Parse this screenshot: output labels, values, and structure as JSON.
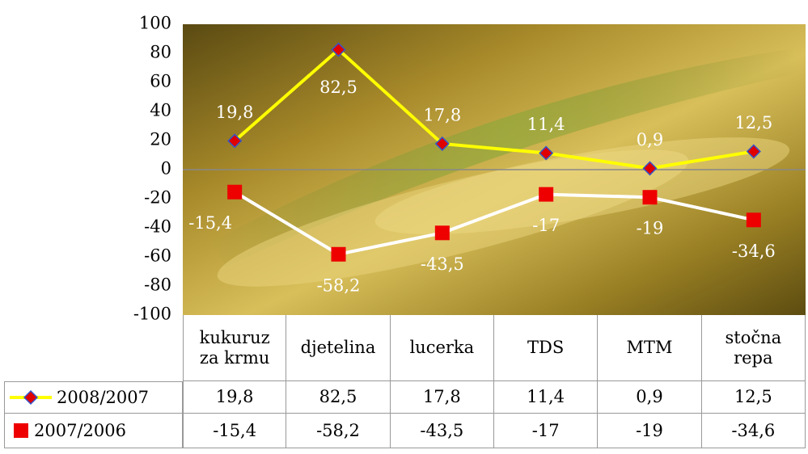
{
  "chart_data": {
    "type": "line",
    "categories": [
      "kukuruz za krmu",
      "djetelina",
      "lucerka",
      "TDS",
      "MTM",
      "stočna repa"
    ],
    "series": [
      {
        "name": "2008/2007",
        "color": "#ffff00",
        "values": [
          19.8,
          82.5,
          17.8,
          11.4,
          0.9,
          12.5
        ],
        "value_labels": [
          "19,8",
          "82,5",
          "17,8",
          "11,4",
          "0,9",
          "12,5"
        ]
      },
      {
        "name": "2007/2006",
        "color": "#ffffff",
        "values": [
          -15.4,
          -58.2,
          -43.5,
          -17,
          -19,
          -34.6
        ],
        "value_labels": [
          "-15,4",
          "-58,2",
          "-43,5",
          "-17",
          "-19",
          "-34,6"
        ]
      }
    ],
    "ylim": [
      -100,
      100
    ],
    "yticks": [
      -100,
      -80,
      -60,
      -40,
      -20,
      0,
      20,
      40,
      60,
      80,
      100
    ]
  }
}
